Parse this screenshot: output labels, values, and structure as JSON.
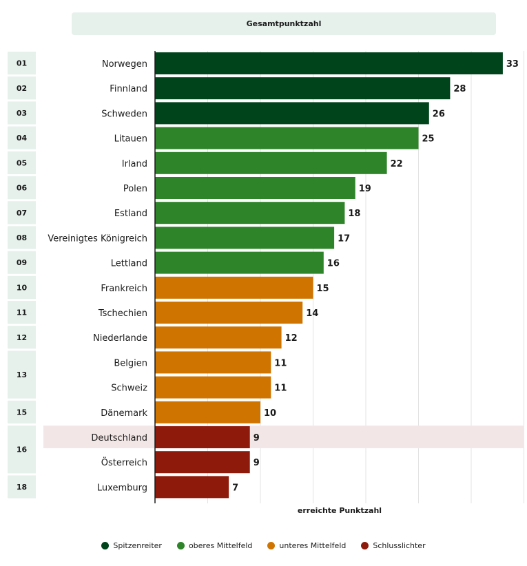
{
  "header": {
    "title": "Gesamtpunktzahl"
  },
  "colors": {
    "Spitzenreiter": "#00441b",
    "oberes Mittelfeld": "#2e8429",
    "unteres Mittelfeld": "#d07400",
    "Schlusslichter": "#8e1a0b",
    "highlight_row": "#f3e6e6",
    "rank_box": "#e6f1ec",
    "grid": "#e3e3e3"
  },
  "chart_data": {
    "type": "bar",
    "orientation": "horizontal",
    "xlabel": "erreichte Punktzahl",
    "xlim": [
      0,
      35
    ],
    "grid": true,
    "legend_position": "bottom",
    "highlight": "Deutschland",
    "categories": [
      "Norwegen",
      "Finnland",
      "Schweden",
      "Litauen",
      "Irland",
      "Polen",
      "Estland",
      "Vereinigtes Königreich",
      "Lettland",
      "Frankreich",
      "Tschechien",
      "Niederlande",
      "Belgien",
      "Schweiz",
      "Dänemark",
      "Deutschland",
      "Österreich",
      "Luxemburg"
    ],
    "values": [
      33,
      28,
      26,
      25,
      22,
      19,
      18,
      17,
      16,
      15,
      14,
      12,
      11,
      11,
      10,
      9,
      9,
      7
    ],
    "groups": [
      "Spitzenreiter",
      "Spitzenreiter",
      "Spitzenreiter",
      "oberes Mittelfeld",
      "oberes Mittelfeld",
      "oberes Mittelfeld",
      "oberes Mittelfeld",
      "oberes Mittelfeld",
      "oberes Mittelfeld",
      "unteres Mittelfeld",
      "unteres Mittelfeld",
      "unteres Mittelfeld",
      "unteres Mittelfeld",
      "unteres Mittelfeld",
      "unteres Mittelfeld",
      "Schlusslichter",
      "Schlusslichter",
      "Schlusslichter"
    ],
    "ranks": [
      {
        "label": "01",
        "count": 1
      },
      {
        "label": "02",
        "count": 1
      },
      {
        "label": "03",
        "count": 1
      },
      {
        "label": "04",
        "count": 1
      },
      {
        "label": "05",
        "count": 1
      },
      {
        "label": "06",
        "count": 1
      },
      {
        "label": "07",
        "count": 1
      },
      {
        "label": "08",
        "count": 1
      },
      {
        "label": "09",
        "count": 1
      },
      {
        "label": "10",
        "count": 1
      },
      {
        "label": "11",
        "count": 1
      },
      {
        "label": "12",
        "count": 1
      },
      {
        "label": "13",
        "count": 2
      },
      {
        "label": "15",
        "count": 1
      },
      {
        "label": "16",
        "count": 2
      },
      {
        "label": "18",
        "count": 1
      }
    ],
    "legend": [
      "Spitzenreiter",
      "oberes Mittelfeld",
      "unteres Mittelfeld",
      "Schlusslichter"
    ]
  }
}
